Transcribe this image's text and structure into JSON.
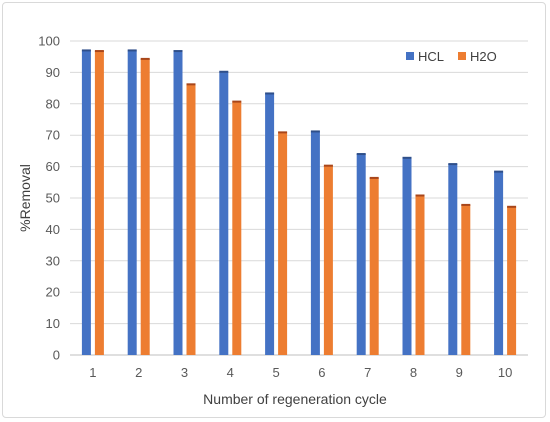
{
  "chart_data": {
    "type": "bar",
    "title": "",
    "xlabel": "Number of regeneration cycle",
    "ylabel": "%Removal",
    "ylim": [
      0,
      100
    ],
    "yticks": [
      0,
      10,
      20,
      30,
      40,
      50,
      60,
      70,
      80,
      90,
      100
    ],
    "grid": true,
    "legend_position": "top-right",
    "categories": [
      "1",
      "2",
      "3",
      "4",
      "5",
      "6",
      "7",
      "8",
      "9",
      "10"
    ],
    "series": [
      {
        "name": "HCL",
        "color": "#4472c4",
        "values": [
          97,
          97,
          96.8,
          90.2,
          83.3,
          71.2,
          64,
          62.8,
          60.8,
          58.4
        ]
      },
      {
        "name": "H2O",
        "color": "#ed7d31",
        "values": [
          96.8,
          94.3,
          86.2,
          80.7,
          70.9,
          60.3,
          56.4,
          50.8,
          47.8,
          47.2
        ]
      }
    ]
  }
}
